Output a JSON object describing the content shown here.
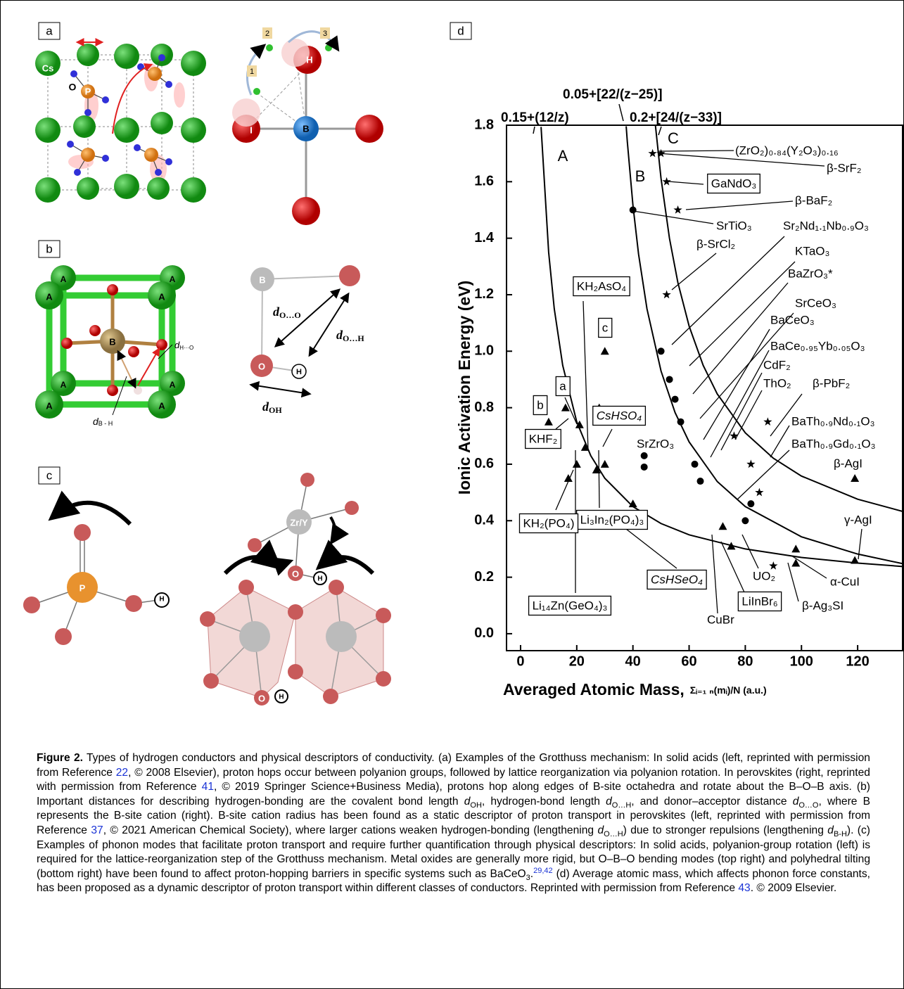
{
  "panels": {
    "a": {
      "label": "a",
      "texts": [
        "Cs",
        "O",
        "P",
        "1",
        "2",
        "3",
        "H",
        "I",
        "B"
      ]
    },
    "b": {
      "label": "b",
      "texts": [
        "A",
        "A",
        "A",
        "A",
        "A",
        "A",
        "A",
        "A",
        "B",
        "B",
        "O",
        "H"
      ],
      "distances": [
        {
          "symbol": "d",
          "sub": "H···O"
        },
        {
          "symbol": "d",
          "sub": "B - H"
        },
        {
          "symbol": "d",
          "sub": "O…O"
        },
        {
          "symbol": "d",
          "sub": "O…H"
        },
        {
          "symbol": "d",
          "sub": "OH"
        }
      ]
    },
    "c": {
      "label": "c",
      "texts": [
        "P",
        "H",
        "Zr/Y",
        "O",
        "H",
        "O",
        "H"
      ]
    },
    "d": {
      "label": "d"
    }
  },
  "chart_data": {
    "type": "scatter",
    "y_label": "Ionic Activation Energy (eV)",
    "x_label": "Averaged Atomic Mass,",
    "x_label_formula": "Σᵢ₌₁ ₙ(mᵢ)/N  (a.u.)",
    "xlim": [
      -5,
      136
    ],
    "ylim": [
      -0.06,
      1.8
    ],
    "xticks": [
      0,
      20,
      40,
      60,
      80,
      100,
      120
    ],
    "yticks": [
      {
        "value": 0,
        "label": "0.0"
      },
      0.2,
      0.4,
      0.6,
      0.8,
      {
        "value": 1,
        "label": "1.0"
      },
      1.2,
      1.4,
      1.6,
      1.8
    ],
    "curves": [
      {
        "label": "0.15+(12/z)",
        "region": "A",
        "color": "#000000",
        "x": [
          7.3,
          10,
          12,
          15,
          20,
          25,
          30,
          40,
          50,
          60,
          80,
          100,
          120,
          136
        ],
        "values": [
          1.794,
          1.35,
          1.15,
          0.95,
          0.75,
          0.63,
          0.55,
          0.45,
          0.39,
          0.35,
          0.3,
          0.27,
          0.25,
          0.238
        ]
      },
      {
        "label": "0.05+[22/(z−25)]",
        "region": "B",
        "color": "#000000",
        "x": [
          37.6,
          38,
          40,
          42,
          45,
          50,
          55,
          60,
          70,
          80,
          100,
          120,
          136
        ],
        "values": [
          1.796,
          1.742,
          1.517,
          1.344,
          1.15,
          0.93,
          0.783,
          0.679,
          0.539,
          0.45,
          0.343,
          0.282,
          0.248
        ]
      },
      {
        "label": "0.2+[24/(z−33)]",
        "region": "C",
        "color": "#000000",
        "x": [
          48,
          50,
          53,
          56,
          60,
          65,
          70,
          80,
          90,
          100,
          120,
          136
        ],
        "values": [
          1.8,
          1.612,
          1.4,
          1.243,
          1.089,
          0.95,
          0.849,
          0.711,
          0.621,
          0.558,
          0.476,
          0.433
        ]
      }
    ],
    "series": [
      {
        "marker": "circle",
        "color": "#000000",
        "x": [
          40,
          50,
          53,
          55,
          57,
          62,
          64,
          44,
          44,
          82,
          80
        ],
        "values": [
          1.5,
          1.0,
          0.9,
          0.83,
          0.75,
          0.6,
          0.54,
          0.63,
          0.59,
          0.46,
          0.4
        ]
      },
      {
        "marker": "triangle",
        "color": "#000000",
        "x": [
          10,
          16,
          17,
          20,
          21,
          23,
          27,
          28,
          30,
          30,
          40,
          72,
          75,
          98,
          98,
          119,
          119
        ],
        "values": [
          0.75,
          0.8,
          0.55,
          0.6,
          0.74,
          0.66,
          0.58,
          0.8,
          1.0,
          0.6,
          0.46,
          0.38,
          0.31,
          0.3,
          0.25,
          0.26,
          0.55
        ]
      },
      {
        "marker": "star",
        "color": "#000000",
        "x": [
          47,
          50,
          52,
          56,
          52,
          76,
          88,
          82,
          85,
          90
        ],
        "values": [
          1.7,
          1.7,
          1.6,
          1.5,
          1.2,
          0.7,
          0.75,
          0.6,
          0.5,
          0.24
        ]
      }
    ],
    "annotations": [
      {
        "text": "(ZrO₂)₀.₈₄(Y₂O₃)₀.₁₆"
      },
      {
        "text": "β-SrF₂"
      },
      {
        "text": "GaNdO₃",
        "boxed": true
      },
      {
        "text": "β-BaF₂"
      },
      {
        "text": "SrTiO₃"
      },
      {
        "text": "β-SrCl₂"
      },
      {
        "text": "Sr₂Nd₁.₁Nb₀.₉O₃"
      },
      {
        "text": "KTaO₃"
      },
      {
        "text": "BaZrO₃*"
      },
      {
        "text": "SrCeO₃"
      },
      {
        "text": "BaCeO₃"
      },
      {
        "text": "BaCe₀.₉₅Yb₀.₀₅O₃"
      },
      {
        "text": "CdF₂"
      },
      {
        "text": "ThO₂"
      },
      {
        "text": "β-PbF₂"
      },
      {
        "text": "BaTh₀.₉Nd₀.₁O₃"
      },
      {
        "text": "BaTh₀.₉Gd₀.₁O₃"
      },
      {
        "text": "β-AgI"
      },
      {
        "text": "SrZrO₃"
      },
      {
        "text": "γ-AgI"
      },
      {
        "text": "α-CuI"
      },
      {
        "text": "β-Ag₃SI"
      },
      {
        "text": "UO₂"
      },
      {
        "text": "LiInBr₆",
        "boxed": true
      },
      {
        "text": "CuBr"
      },
      {
        "text": "CsHSeO₄",
        "boxed": true,
        "italic": true
      },
      {
        "text": "Li₁₄Zn(GeO₄)₃",
        "boxed": true
      },
      {
        "text": "Li₃In₂(PO₄)₃",
        "boxed": true
      },
      {
        "text": "KH₂(PO₄)",
        "boxed": true
      },
      {
        "text": "KHF₂",
        "boxed": true
      },
      {
        "text": "CsHSO₄",
        "boxed": true,
        "italic": true
      },
      {
        "text": "KH₂AsO₄",
        "boxed": true
      },
      {
        "text": "c",
        "boxed": true
      },
      {
        "text": "a",
        "boxed": true
      },
      {
        "text": "b",
        "boxed": true
      }
    ]
  },
  "caption": {
    "label": "Figure 2.",
    "segments": [
      {
        "text": " Types of hydrogen conductors and physical descriptors of conductivity. (a) Examples of the Grotthuss mechanism: In solid acids (left, reprinted with permission from Reference "
      },
      {
        "text": "22",
        "style": "ref"
      },
      {
        "text": ", © 2008 Elsevier), proton hops occur between polyanion groups, followed by lattice reorganization via polyanion rotation. In perovskites (right, reprinted with permission from Reference "
      },
      {
        "text": "41",
        "style": "ref"
      },
      {
        "text": ", © 2019 Springer Science+Business Media), protons hop along edges of B-site octahedra and rotate about the B–O–B axis. (b) Important distances for describing hydrogen-bonding are the covalent bond length "
      },
      {
        "text": "d",
        "style": "italic"
      },
      {
        "text": "OH",
        "style": "sub"
      },
      {
        "text": ", hydrogen-bond length "
      },
      {
        "text": "d",
        "style": "italic"
      },
      {
        "text": "O…H",
        "style": "sub"
      },
      {
        "text": ", and donor–acceptor distance "
      },
      {
        "text": "d",
        "style": "italic"
      },
      {
        "text": "O…O",
        "style": "sub"
      },
      {
        "text": ", where B represents the B-site cation (right). B-site cation radius has been found as a static descriptor of proton transport in perovskites (left, reprinted with permission from Reference "
      },
      {
        "text": "37",
        "style": "ref"
      },
      {
        "text": ", © 2021 American Chemical Society), where larger cations weaken hydrogen-bonding (lengthening "
      },
      {
        "text": "d",
        "style": "italic"
      },
      {
        "text": "O…H",
        "style": "sub"
      },
      {
        "text": ") due to stronger repulsions (lengthening "
      },
      {
        "text": "d",
        "style": "italic"
      },
      {
        "text": "B-H",
        "style": "sub"
      },
      {
        "text": "). (c) Examples of phonon modes that facilitate proton transport and require further quantification through physical descriptors: In solid acids, polyanion-group rotation (left) is required for the lattice-reorganization step of the Grotthuss mechanism. Metal oxides are generally more rigid, but O–B–O bending modes (top right) and polyhedral tilting (bottom right) have been found to affect proton-hopping barriers in specific systems such as BaCeO"
      },
      {
        "text": "3",
        "style": "sub"
      },
      {
        "text": "."
      },
      {
        "text": "29,42",
        "style": "supref"
      },
      {
        "text": " (d) Average atomic mass, which affects phonon force constants, has been proposed as a dynamic descriptor of proton transport within different classes of conductors. Reprinted with permission from Reference "
      },
      {
        "text": "43",
        "style": "ref"
      },
      {
        "text": ". © 2009 Elsevier."
      }
    ]
  }
}
